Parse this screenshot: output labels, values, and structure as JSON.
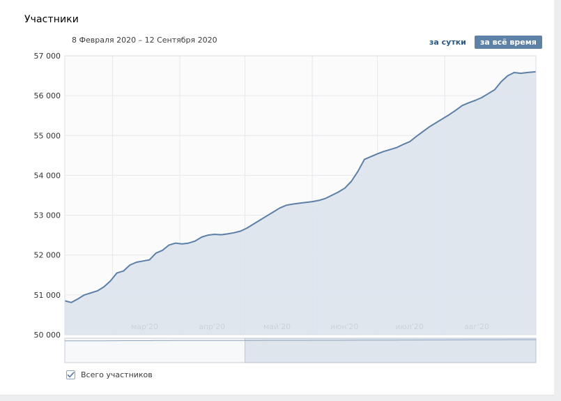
{
  "title": "Участники",
  "date_range": "8 Февраля 2020 – 12 Сентября 2020",
  "buttons": {
    "per_day": "за сутки",
    "all_time": "за всё время"
  },
  "legend": {
    "label": "Всего участников",
    "checked": true
  },
  "colors": {
    "line": "#5b7fa6",
    "area": "#dde3ec",
    "accent_button": "#5e81a8",
    "link": "#2a5885"
  },
  "chart_data": {
    "type": "area",
    "title": "Участники",
    "xlabel": "",
    "ylabel": "",
    "ylim": [
      50000,
      57000
    ],
    "y_ticks": [
      "50 000",
      "51 000",
      "52 000",
      "53 000",
      "54 000",
      "55 000",
      "56 000",
      "57 000"
    ],
    "y_tick_values": [
      50000,
      51000,
      52000,
      53000,
      54000,
      55000,
      56000,
      57000
    ],
    "x_range": [
      "2020-02-08",
      "2020-09-12"
    ],
    "x_ticks": [
      {
        "label": "мар'20",
        "date": "2020-03-01"
      },
      {
        "label": "апр'20",
        "date": "2020-04-01"
      },
      {
        "label": "май'20",
        "date": "2020-05-01"
      },
      {
        "label": "июн'20",
        "date": "2020-06-01"
      },
      {
        "label": "июл'20",
        "date": "2020-07-01"
      },
      {
        "label": "авг'20",
        "date": "2020-08-01"
      }
    ],
    "grid": true,
    "series": [
      {
        "name": "Всего участников",
        "points": [
          [
            "2020-02-08",
            50850
          ],
          [
            "2020-02-11",
            50810
          ],
          [
            "2020-02-14",
            50900
          ],
          [
            "2020-02-17",
            51000
          ],
          [
            "2020-02-20",
            51050
          ],
          [
            "2020-02-23",
            51100
          ],
          [
            "2020-02-26",
            51200
          ],
          [
            "2020-02-29",
            51350
          ],
          [
            "2020-03-03",
            51550
          ],
          [
            "2020-03-06",
            51600
          ],
          [
            "2020-03-09",
            51750
          ],
          [
            "2020-03-12",
            51820
          ],
          [
            "2020-03-15",
            51850
          ],
          [
            "2020-03-18",
            51880
          ],
          [
            "2020-03-21",
            52050
          ],
          [
            "2020-03-24",
            52120
          ],
          [
            "2020-03-27",
            52250
          ],
          [
            "2020-03-30",
            52300
          ],
          [
            "2020-04-02",
            52280
          ],
          [
            "2020-04-05",
            52300
          ],
          [
            "2020-04-08",
            52350
          ],
          [
            "2020-04-11",
            52450
          ],
          [
            "2020-04-14",
            52500
          ],
          [
            "2020-04-17",
            52520
          ],
          [
            "2020-04-20",
            52510
          ],
          [
            "2020-04-23",
            52530
          ],
          [
            "2020-04-26",
            52560
          ],
          [
            "2020-04-29",
            52600
          ],
          [
            "2020-05-02",
            52680
          ],
          [
            "2020-05-05",
            52780
          ],
          [
            "2020-05-08",
            52880
          ],
          [
            "2020-05-11",
            52980
          ],
          [
            "2020-05-14",
            53080
          ],
          [
            "2020-05-17",
            53180
          ],
          [
            "2020-05-20",
            53250
          ],
          [
            "2020-05-23",
            53280
          ],
          [
            "2020-05-26",
            53300
          ],
          [
            "2020-05-29",
            53320
          ],
          [
            "2020-06-01",
            53340
          ],
          [
            "2020-06-04",
            53370
          ],
          [
            "2020-06-07",
            53420
          ],
          [
            "2020-06-10",
            53500
          ],
          [
            "2020-06-13",
            53580
          ],
          [
            "2020-06-16",
            53680
          ],
          [
            "2020-06-19",
            53850
          ],
          [
            "2020-06-22",
            54100
          ],
          [
            "2020-06-25",
            54400
          ],
          [
            "2020-06-28",
            54470
          ],
          [
            "2020-07-01",
            54540
          ],
          [
            "2020-07-04",
            54600
          ],
          [
            "2020-07-07",
            54650
          ],
          [
            "2020-07-10",
            54700
          ],
          [
            "2020-07-13",
            54780
          ],
          [
            "2020-07-16",
            54850
          ],
          [
            "2020-07-19",
            54980
          ],
          [
            "2020-07-22",
            55100
          ],
          [
            "2020-07-25",
            55220
          ],
          [
            "2020-07-28",
            55320
          ],
          [
            "2020-07-31",
            55420
          ],
          [
            "2020-08-03",
            55520
          ],
          [
            "2020-08-06",
            55630
          ],
          [
            "2020-08-09",
            55750
          ],
          [
            "2020-08-12",
            55820
          ],
          [
            "2020-08-15",
            55880
          ],
          [
            "2020-08-18",
            55950
          ],
          [
            "2020-08-21",
            56050
          ],
          [
            "2020-08-24",
            56150
          ],
          [
            "2020-08-27",
            56350
          ],
          [
            "2020-08-30",
            56500
          ],
          [
            "2020-09-02",
            56580
          ],
          [
            "2020-09-05",
            56560
          ],
          [
            "2020-09-08",
            56580
          ],
          [
            "2020-09-12",
            56600
          ]
        ]
      }
    ],
    "navigator_selected_range": [
      "2020-05-01",
      "2020-09-12"
    ]
  }
}
